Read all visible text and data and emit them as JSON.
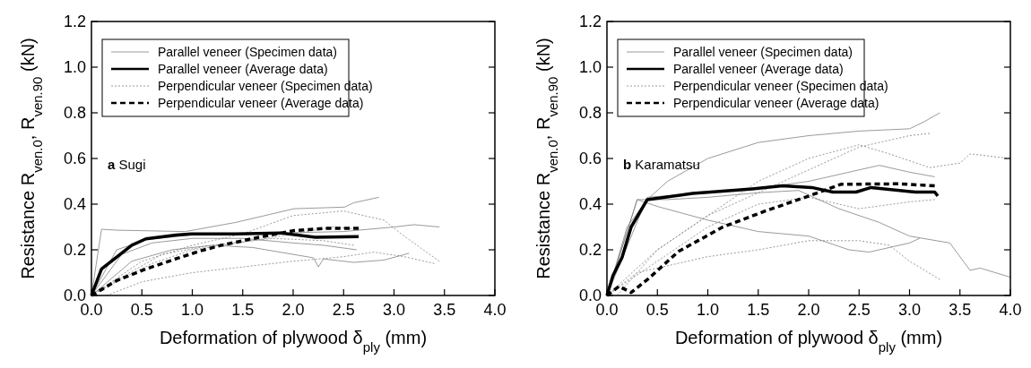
{
  "chart_data": [
    {
      "type": "line",
      "xlabel": "Deformation of plywood δ$_{ply}$ (mm)",
      "ylabel": "Resistance R$_{ven.0}$, R$_{ven.90}$ (kN)",
      "annotations": [
        "a Sugi"
      ],
      "legend": "top left",
      "xlim": [
        0,
        4
      ],
      "ylim": [
        0,
        1.2
      ],
      "xticks": [
        {
          "value": 0,
          "label": "0.0"
        },
        {
          "value": 0.5,
          "label": "0.5"
        },
        {
          "value": 1,
          "label": "1.0"
        },
        {
          "value": 1.5,
          "label": "1.5"
        },
        {
          "value": 2,
          "label": "2.0"
        },
        {
          "value": 2.5,
          "label": "2.5"
        },
        {
          "value": 3,
          "label": "3.0"
        },
        {
          "value": 3.5,
          "label": "3.5"
        },
        {
          "value": 4,
          "label": "4.0"
        }
      ],
      "yticks": [
        {
          "value": 0,
          "label": "0.0"
        },
        {
          "value": 0.2,
          "label": "0.2"
        },
        {
          "value": 0.4,
          "label": "0.4"
        },
        {
          "value": 0.6,
          "label": "0.6"
        },
        {
          "value": 0.8,
          "label": "0.8"
        },
        {
          "value": 1,
          "label": "1.0"
        },
        {
          "value": 1.2,
          "label": "1.2"
        }
      ],
      "series": [
        {
          "name": "Parallel veneer (Specimen data)",
          "color": "#808080",
          "line_style": "solid",
          "x": [
            0,
            0.1,
            0.25,
            0.93,
            1.43,
            2.01,
            2.51,
            2.6,
            2.85
          ],
          "values": [
            0,
            0.29,
            0.286,
            0.28,
            0.32,
            0.38,
            0.387,
            0.406,
            0.43
          ]
        },
        {
          "color": "#808080",
          "line_style": "solid",
          "x": [
            0,
            0.25,
            0.55,
            1,
            1.5,
            2,
            2.5,
            3,
            3.2,
            3.45
          ],
          "values": [
            0,
            0.2,
            0.245,
            0.265,
            0.27,
            0.275,
            0.28,
            0.3,
            0.31,
            0.3
          ]
        },
        {
          "color": "#808080",
          "line_style": "solid",
          "x": [
            0,
            0.3,
            0.6,
            1,
            1.5,
            2,
            2.3,
            2.63
          ],
          "values": [
            0,
            0.18,
            0.23,
            0.25,
            0.25,
            0.23,
            0.22,
            0.2
          ]
        },
        {
          "color": "#808080",
          "line_style": "solid",
          "x": [
            0,
            0.4,
            0.8,
            1.2,
            1.6,
            2,
            2.2,
            2.25,
            2.3,
            2.6,
            2.9,
            3.15
          ],
          "values": [
            0,
            0.15,
            0.2,
            0.22,
            0.21,
            0.18,
            0.165,
            0.125,
            0.16,
            0.145,
            0.155,
            0.185
          ]
        },
        {
          "name": "Parallel veneer (Average data)",
          "color": "#000000",
          "line_style": "solid",
          "x": [
            0,
            0.1,
            0.25,
            0.4,
            0.54,
            0.84,
            0.99,
            1.43,
            1.87,
            2.22,
            2.65
          ],
          "values": [
            0,
            0.116,
            0.168,
            0.22,
            0.248,
            0.265,
            0.27,
            0.27,
            0.274,
            0.255,
            0.258
          ]
        },
        {
          "name": "Perpendicular veneer (Specimen data)",
          "color": "#808080",
          "line_style": "dotted",
          "x": [
            0,
            0.5,
            1,
            1.5,
            2,
            2.5,
            2.9,
            3.1,
            3.45
          ],
          "values": [
            0,
            0.15,
            0.22,
            0.27,
            0.35,
            0.37,
            0.33,
            0.26,
            0.15
          ]
        },
        {
          "color": "#808080",
          "line_style": "dotted",
          "x": [
            0.15,
            0.5,
            1,
            1.5,
            2,
            2.5,
            2.8,
            3.1,
            3.4
          ],
          "values": [
            0,
            0.06,
            0.1,
            0.125,
            0.15,
            0.17,
            0.19,
            0.17,
            0.14
          ]
        },
        {
          "color": "#808080",
          "line_style": "dotted",
          "x": [
            0,
            0.3,
            0.7,
            1.2,
            1.8,
            2.3,
            2.6
          ],
          "values": [
            0,
            0.08,
            0.18,
            0.22,
            0.25,
            0.24,
            0.22
          ]
        },
        {
          "color": "#808080",
          "line_style": "dotted",
          "x": [
            0,
            0.2,
            0.6,
            1,
            1.6,
            2,
            2.4,
            2.65
          ],
          "values": [
            0,
            0.05,
            0.14,
            0.2,
            0.24,
            0.27,
            0.3,
            0.29
          ]
        },
        {
          "name": "Perpendicular veneer (Average data)",
          "color": "#000000",
          "line_style": "dashed",
          "x": [
            0,
            0.1,
            0.25,
            0.54,
            0.84,
            1.07,
            1.28,
            1.66,
            2.01,
            2.31,
            2.65
          ],
          "values": [
            0,
            0.026,
            0.065,
            0.116,
            0.161,
            0.194,
            0.219,
            0.255,
            0.284,
            0.294,
            0.294
          ]
        }
      ]
    },
    {
      "type": "line",
      "xlabel": "Deformation of plywood δ$_{ply}$ (mm)",
      "ylabel": "Resistance R$_{ven.0}$, R$_{ven.90}$ (kN)",
      "annotations": [
        "b Karamatsu"
      ],
      "legend": "top left",
      "xlim": [
        0,
        4
      ],
      "ylim": [
        0,
        1.2
      ],
      "xticks": [
        {
          "value": 0,
          "label": "0.0"
        },
        {
          "value": 0.5,
          "label": "0.5"
        },
        {
          "value": 1,
          "label": "1.0"
        },
        {
          "value": 1.5,
          "label": "1.5"
        },
        {
          "value": 2,
          "label": "2.0"
        },
        {
          "value": 2.5,
          "label": "2.5"
        },
        {
          "value": 3,
          "label": "3.0"
        },
        {
          "value": 3.5,
          "label": "3.5"
        },
        {
          "value": 4,
          "label": "4.0"
        }
      ],
      "yticks": [
        {
          "value": 0,
          "label": "0.0"
        },
        {
          "value": 0.2,
          "label": "0.2"
        },
        {
          "value": 0.4,
          "label": "0.4"
        },
        {
          "value": 0.6,
          "label": "0.6"
        },
        {
          "value": 0.8,
          "label": "0.8"
        },
        {
          "value": 1,
          "label": "1.0"
        },
        {
          "value": 1.2,
          "label": "1.2"
        }
      ],
      "series": [
        {
          "name": "Parallel veneer (Specimen data)",
          "color": "#808080",
          "line_style": "solid",
          "x": [
            0,
            0.2,
            0.4,
            0.6,
            1,
            1.5,
            2,
            2.5,
            3,
            3.14,
            3.3
          ],
          "values": [
            0,
            0.3,
            0.42,
            0.5,
            0.6,
            0.67,
            0.7,
            0.72,
            0.73,
            0.76,
            0.8
          ]
        },
        {
          "color": "#808080",
          "line_style": "solid",
          "x": [
            0,
            0.4,
            1,
            1.5,
            2,
            2.5,
            2.7,
            3,
            3.25
          ],
          "values": [
            0,
            0.43,
            0.45,
            0.47,
            0.5,
            0.55,
            0.57,
            0.54,
            0.52
          ]
        },
        {
          "color": "#808080",
          "line_style": "solid",
          "x": [
            0,
            0.3,
            0.5,
            1,
            1.5,
            2,
            2.4,
            2.6,
            3,
            3.1
          ],
          "values": [
            0,
            0.42,
            0.39,
            0.33,
            0.28,
            0.26,
            0.2,
            0.19,
            0.23,
            0.25
          ]
        },
        {
          "color": "#808080",
          "line_style": "solid",
          "x": [
            0,
            0.3,
            0.6,
            1,
            1.5,
            1.9,
            2.3,
            2.7,
            3,
            3.4,
            3.6,
            3.7,
            4
          ],
          "values": [
            0,
            0.42,
            0.42,
            0.43,
            0.45,
            0.46,
            0.38,
            0.32,
            0.26,
            0.23,
            0.11,
            0.12,
            0.08
          ]
        },
        {
          "name": "Parallel veneer (Average data)",
          "color": "#000000",
          "line_style": "solid",
          "x": [
            0,
            0.06,
            0.15,
            0.24,
            0.4,
            0.85,
            1.44,
            1.74,
            2.03,
            2.24,
            2.47,
            2.62,
            3.06,
            3.25,
            3.28
          ],
          "values": [
            0,
            0.087,
            0.167,
            0.3,
            0.42,
            0.447,
            0.467,
            0.48,
            0.473,
            0.453,
            0.453,
            0.473,
            0.453,
            0.453,
            0.436
          ]
        },
        {
          "name": "Perpendicular veneer (Specimen data)",
          "color": "#808080",
          "line_style": "dotted",
          "x": [
            0.1,
            0.5,
            1,
            1.5,
            2,
            2.5,
            2.8,
            3.2,
            3.5,
            3.6,
            4
          ],
          "values": [
            0,
            0.2,
            0.35,
            0.5,
            0.6,
            0.66,
            0.62,
            0.56,
            0.58,
            0.62,
            0.6
          ]
        },
        {
          "color": "#808080",
          "line_style": "dotted",
          "x": [
            0,
            0.3,
            1,
            1.5,
            2,
            2.5,
            2.8,
            3,
            3.3
          ],
          "values": [
            0,
            0.1,
            0.17,
            0.2,
            0.24,
            0.24,
            0.22,
            0.15,
            0.07
          ]
        },
        {
          "color": "#808080",
          "line_style": "dotted",
          "x": [
            0,
            0.5,
            1,
            1.5,
            2,
            2.5,
            3,
            3.2
          ],
          "values": [
            0,
            0.2,
            0.35,
            0.45,
            0.55,
            0.65,
            0.7,
            0.71
          ]
        },
        {
          "color": "#808080",
          "line_style": "dotted",
          "x": [
            0,
            0.5,
            1,
            1.5,
            2,
            2.5,
            3,
            3.25
          ],
          "values": [
            0,
            0.15,
            0.3,
            0.4,
            0.43,
            0.38,
            0.41,
            0.42
          ]
        },
        {
          "name": "Perpendicular veneer (Average data)",
          "color": "#000000",
          "line_style": "dashed",
          "x": [
            0,
            0.12,
            0.24,
            0.41,
            0.71,
            1.15,
            1.59,
            2.03,
            2.32,
            2.91,
            3.25
          ],
          "values": [
            0,
            0.04,
            0.013,
            0.073,
            0.193,
            0.3,
            0.373,
            0.44,
            0.487,
            0.489,
            0.48
          ]
        }
      ]
    }
  ]
}
